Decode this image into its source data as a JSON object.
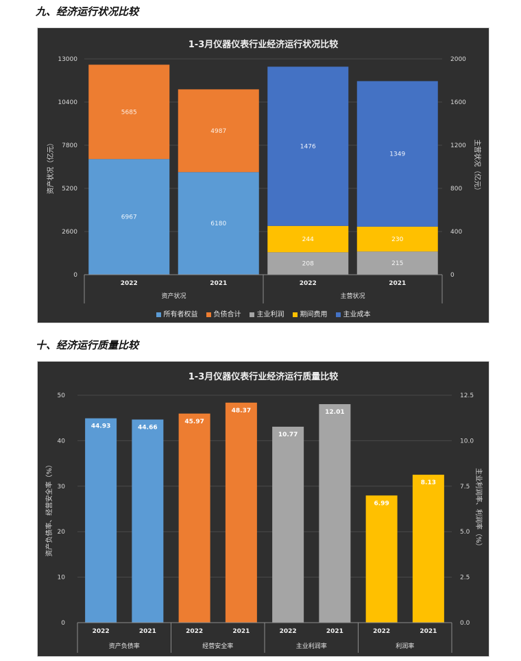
{
  "section1_title": "九、经济运行状况比较",
  "section2_title": "十、经济运行质量比较",
  "chart_data": [
    {
      "type": "bar",
      "stacked": true,
      "title": "1-3月仪器仪表行业经济运行状况比较",
      "ylabel": "资产状况（亿元）",
      "y2label": "主营状况（亿元）",
      "ylim": [
        0,
        13000
      ],
      "y2lim": [
        0,
        2000
      ],
      "yticks": [
        "0",
        "2600",
        "5200",
        "7800",
        "10400",
        "13000"
      ],
      "y2ticks": [
        "0",
        "400",
        "800",
        "1200",
        "1600",
        "2000"
      ],
      "groups": [
        "资产状况",
        "主营状况"
      ],
      "categories": [
        "2022",
        "2021",
        "2022",
        "2021"
      ],
      "legend_position": "bottom",
      "legend": [
        {
          "name": "所有者权益",
          "color": "#5b9bd5"
        },
        {
          "name": "负债合计",
          "color": "#ed7d31"
        },
        {
          "name": "主业利润",
          "color": "#a5a5a5"
        },
        {
          "name": "期间费用",
          "color": "#ffc000"
        },
        {
          "name": "主业成本",
          "color": "#4472c4"
        }
      ],
      "series": [
        {
          "name": "所有者权益",
          "axis": "left",
          "values": [
            6967,
            6180,
            null,
            null
          ],
          "labels": [
            "6967",
            "6180",
            "",
            ""
          ]
        },
        {
          "name": "负债合计",
          "axis": "left",
          "values": [
            5685,
            4987,
            null,
            null
          ],
          "labels": [
            "5685",
            "4987",
            "",
            ""
          ]
        },
        {
          "name": "主业利润",
          "axis": "right",
          "values": [
            null,
            null,
            208,
            215
          ],
          "labels": [
            "",
            "",
            "208",
            "215"
          ]
        },
        {
          "name": "期间费用",
          "axis": "right",
          "values": [
            null,
            null,
            244,
            230
          ],
          "labels": [
            "",
            "",
            "244",
            "230"
          ]
        },
        {
          "name": "主业成本",
          "axis": "right",
          "values": [
            null,
            null,
            1476,
            1349
          ],
          "labels": [
            "",
            "",
            "1476",
            "1349"
          ]
        }
      ]
    },
    {
      "type": "bar",
      "title": "1-3月仪器仪表行业经济运行质量比较",
      "ylabel": "资产负债率、经营安全率（%）",
      "y2label": "主业利润率、利润率（%）",
      "ylim": [
        0,
        50
      ],
      "y2lim": [
        0,
        12.5
      ],
      "yticks": [
        "0",
        "10",
        "20",
        "30",
        "40",
        "50"
      ],
      "y2ticks": [
        "0.0",
        "2.5",
        "5.0",
        "7.5",
        "10.0",
        "12.5"
      ],
      "groups": [
        "资产负债率",
        "经营安全率",
        "主业利润率",
        "利润率"
      ],
      "categories": [
        "2022",
        "2021",
        "2022",
        "2021",
        "2022",
        "2021",
        "2022",
        "2021"
      ],
      "values": [
        44.93,
        44.66,
        45.97,
        48.37,
        10.77,
        12.01,
        6.99,
        8.13
      ],
      "labels": [
        "44.93",
        "44.66",
        "45.97",
        "48.37",
        "10.77",
        "12.01",
        "6.99",
        "8.13"
      ],
      "axes": [
        "left",
        "left",
        "left",
        "left",
        "right",
        "right",
        "right",
        "right"
      ],
      "colors": [
        "#5b9bd5",
        "#5b9bd5",
        "#ed7d31",
        "#ed7d31",
        "#a5a5a5",
        "#a5a5a5",
        "#ffc000",
        "#ffc000"
      ]
    }
  ]
}
